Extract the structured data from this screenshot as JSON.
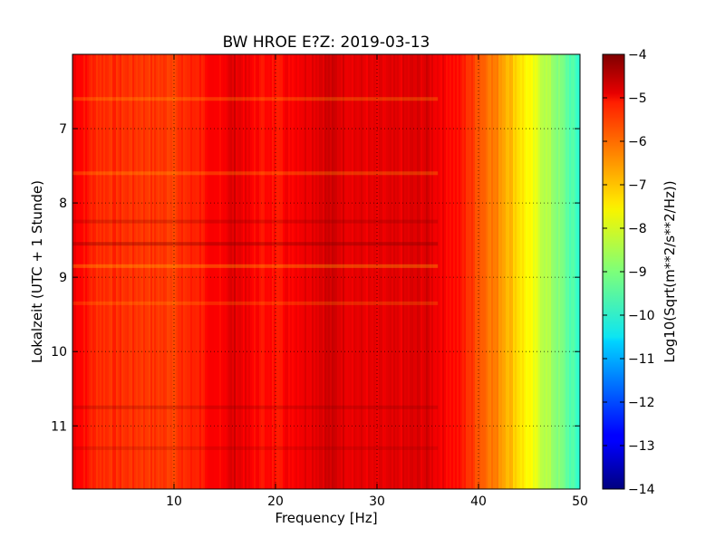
{
  "chart_data": {
    "type": "heatmap",
    "title": "BW HROE E?Z: 2019-03-13",
    "xlabel": "Frequency [Hz]",
    "ylabel": "Lokalzeit (UTC + 1 Stunde)",
    "x_range": [
      0,
      50
    ],
    "y_range": [
      6.0,
      11.85
    ],
    "y_inverted": true,
    "x_ticks": [
      10,
      20,
      30,
      40,
      50
    ],
    "y_ticks": [
      7,
      8,
      9,
      10,
      11
    ],
    "grid": true,
    "colormap": "jet",
    "colorbar": {
      "label": "Log10(Sqrt(m**2/s**2/Hz))",
      "range": [
        -14,
        -4
      ],
      "ticks": [
        -4,
        -5,
        -6,
        -7,
        -8,
        -9,
        -10,
        -11,
        -12,
        -13,
        -14
      ]
    },
    "frequency_profile": {
      "x": [
        0,
        2,
        5,
        10,
        14,
        16,
        18,
        20,
        22,
        25,
        30,
        35,
        38,
        40,
        42,
        44,
        46,
        48,
        50
      ],
      "values": [
        -5.0,
        -5.6,
        -5.7,
        -5.8,
        -5.3,
        -4.9,
        -5.3,
        -5.4,
        -5.1,
        -4.8,
        -5.1,
        -4.9,
        -5.4,
        -6.0,
        -6.6,
        -7.4,
        -8.2,
        -9.0,
        -9.8
      ]
    },
    "time_bands": [
      {
        "y": 6.6,
        "offset": 0.4
      },
      {
        "y": 7.6,
        "offset": 0.4
      },
      {
        "y": 8.25,
        "offset": -0.4
      },
      {
        "y": 8.55,
        "offset": -0.6
      },
      {
        "y": 8.85,
        "offset": 0.5
      },
      {
        "y": 9.35,
        "offset": 0.3
      },
      {
        "y": 10.75,
        "offset": -0.4
      },
      {
        "y": 11.3,
        "offset": -0.3
      }
    ]
  }
}
